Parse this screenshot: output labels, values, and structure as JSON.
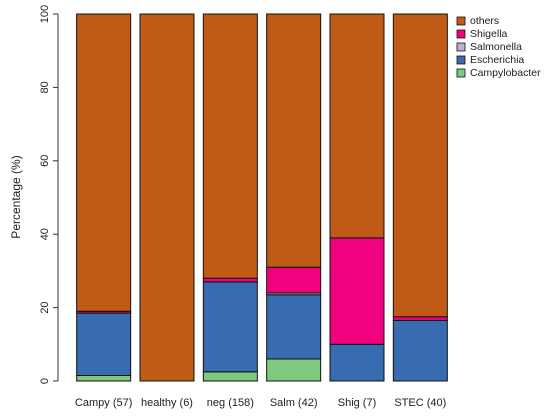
{
  "chart_data": {
    "type": "bar",
    "stacked": true,
    "title": "",
    "xlabel": "",
    "ylabel": "Percentage (%)",
    "ylim": [
      0,
      100
    ],
    "y_ticks": [
      0,
      20,
      40,
      60,
      80,
      100
    ],
    "grid": false,
    "legend_position": "top-right",
    "categories": [
      "Campy (57)",
      "healthy (6)",
      "neg (158)",
      "Salm (42)",
      "Shig (7)",
      "STEC (40)"
    ],
    "series": [
      {
        "name": "Campylobacter",
        "color": "#7fc97f",
        "values": [
          1.5,
          0.0,
          2.5,
          6.0,
          0.0,
          0.0
        ]
      },
      {
        "name": "Escherichia",
        "color": "#386cb0",
        "values": [
          17.0,
          0.0,
          24.5,
          17.5,
          10.0,
          16.5
        ]
      },
      {
        "name": "Salmonella",
        "color": "#beaed4",
        "values": [
          0.0,
          0.0,
          0.0,
          0.5,
          0.0,
          0.0
        ]
      },
      {
        "name": "Shigella",
        "color": "#f0027f",
        "values": [
          0.5,
          0.0,
          1.0,
          7.0,
          29.0,
          1.0
        ]
      },
      {
        "name": "others",
        "color": "#c05a17",
        "values": [
          81.0,
          100.0,
          72.0,
          69.0,
          61.0,
          82.5
        ]
      }
    ],
    "legend_order": [
      "others",
      "Shigella",
      "Salmonella",
      "Escherichia",
      "Campylobacter"
    ]
  }
}
